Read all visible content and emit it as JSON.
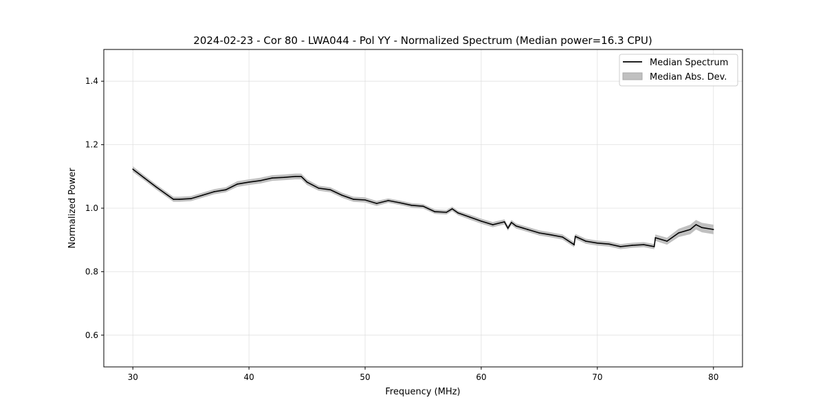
{
  "chart_data": {
    "type": "line",
    "title": "2024-02-23 - Cor 80 - LWA044 - Pol YY - Normalized Spectrum (Median power=16.3 CPU)",
    "xlabel": "Frequency (MHz)",
    "ylabel": "Normalized Power",
    "xlim": [
      27.5,
      82.5
    ],
    "ylim": [
      0.5,
      1.5
    ],
    "xticks": [
      30,
      40,
      50,
      60,
      70,
      80
    ],
    "yticks": [
      0.6,
      0.8,
      1.0,
      1.2,
      1.4
    ],
    "ytick_labels": [
      "0.6",
      "0.8",
      "1.0",
      "1.2",
      "1.4"
    ],
    "grid": true,
    "legend_position": "top-right",
    "legend": [
      "Median Spectrum",
      "Median Abs. Dev."
    ],
    "colors": {
      "line": "#000000",
      "band": "#c0c0c0",
      "grid": "#e0e0e0"
    },
    "series": [
      {
        "name": "Median Spectrum",
        "x": [
          30,
          31,
          32,
          33,
          33.5,
          34,
          35,
          36,
          37,
          38,
          39,
          40,
          41,
          42,
          43,
          44,
          44.5,
          45,
          46,
          47,
          48,
          49,
          50,
          51,
          52,
          53,
          54,
          55,
          56,
          57,
          57.5,
          58,
          59,
          60,
          61,
          62,
          62.3,
          62.6,
          63,
          64,
          65,
          66,
          67,
          68,
          68.1,
          69,
          70,
          71,
          72,
          73,
          74,
          74.9,
          75,
          76,
          77,
          78,
          78.5,
          79,
          80
        ],
        "y": [
          1.123,
          1.095,
          1.067,
          1.041,
          1.028,
          1.028,
          1.03,
          1.041,
          1.052,
          1.058,
          1.076,
          1.082,
          1.087,
          1.095,
          1.097,
          1.1,
          1.1,
          1.082,
          1.063,
          1.058,
          1.041,
          1.028,
          1.026,
          1.015,
          1.024,
          1.017,
          1.009,
          1.006,
          0.989,
          0.987,
          0.998,
          0.985,
          0.972,
          0.959,
          0.948,
          0.957,
          0.937,
          0.955,
          0.944,
          0.933,
          0.922,
          0.916,
          0.909,
          0.885,
          0.911,
          0.896,
          0.89,
          0.887,
          0.879,
          0.883,
          0.885,
          0.879,
          0.907,
          0.896,
          0.922,
          0.933,
          0.948,
          0.939,
          0.933
        ],
        "mad": [
          0.009,
          0.008,
          0.008,
          0.008,
          0.008,
          0.008,
          0.008,
          0.008,
          0.008,
          0.008,
          0.009,
          0.009,
          0.009,
          0.009,
          0.009,
          0.009,
          0.009,
          0.009,
          0.008,
          0.008,
          0.008,
          0.008,
          0.008,
          0.008,
          0.007,
          0.007,
          0.007,
          0.007,
          0.007,
          0.007,
          0.007,
          0.007,
          0.008,
          0.008,
          0.008,
          0.008,
          0.008,
          0.008,
          0.008,
          0.008,
          0.008,
          0.008,
          0.008,
          0.008,
          0.008,
          0.008,
          0.008,
          0.008,
          0.008,
          0.008,
          0.008,
          0.008,
          0.01,
          0.011,
          0.013,
          0.015,
          0.015,
          0.015,
          0.015
        ]
      }
    ]
  }
}
